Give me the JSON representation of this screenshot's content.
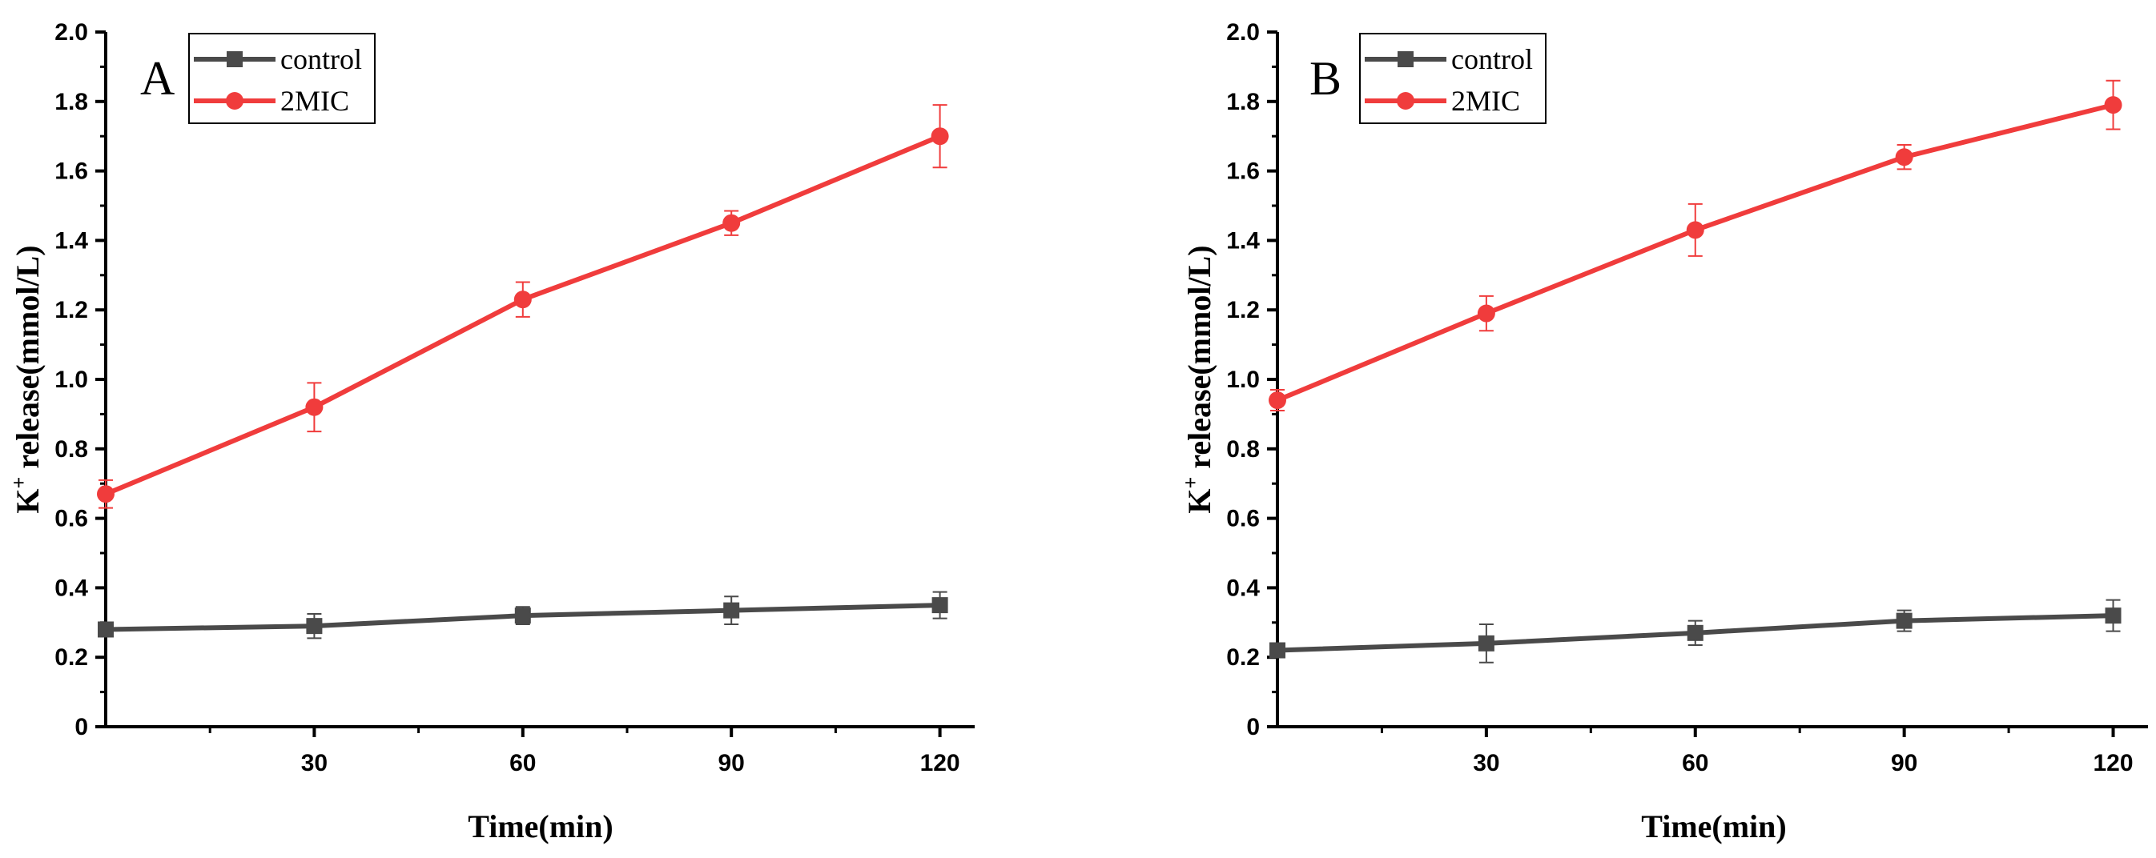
{
  "chart_data": [
    {
      "type": "line",
      "panel": "A",
      "xlabel": "Time(min)",
      "ylabel_main": "K",
      "ylabel_sup": "+",
      "ylabel_rest": " release(mmol/L)",
      "xlim": [
        0,
        125
      ],
      "ylim": [
        0,
        2.0
      ],
      "xticks": [
        30,
        60,
        90,
        120
      ],
      "xtick_labels": [
        "30",
        "60",
        "90",
        "120"
      ],
      "yticks": [
        0,
        0.2,
        0.4,
        0.6,
        0.8,
        1.0,
        1.2,
        1.4,
        1.6,
        1.8,
        2.0
      ],
      "ytick_labels": [
        "0",
        "0.2",
        "0.4",
        "0.6",
        "0.8",
        "1.0",
        "1.2",
        "1.4",
        "1.6",
        "1.8",
        "2.0"
      ],
      "legend_position": "top-left",
      "x": [
        0,
        30,
        60,
        90,
        120
      ],
      "series": [
        {
          "name": "control",
          "marker": "square",
          "color": "#4a4a4a",
          "values": [
            0.28,
            0.29,
            0.32,
            0.335,
            0.35
          ],
          "errors": [
            0.02,
            0.035,
            0.025,
            0.04,
            0.038
          ]
        },
        {
          "name": "2MIC",
          "marker": "circle",
          "color": "#f03c3c",
          "values": [
            0.67,
            0.92,
            1.23,
            1.45,
            1.7
          ],
          "errors": [
            0.04,
            0.07,
            0.05,
            0.035,
            0.09
          ]
        }
      ]
    },
    {
      "type": "line",
      "panel": "B",
      "xlabel": "Time(min)",
      "ylabel_main": "K",
      "ylabel_sup": "+",
      "ylabel_rest": " release(mmol/L)",
      "xlim": [
        0,
        125
      ],
      "ylim": [
        0,
        2.0
      ],
      "xticks": [
        30,
        60,
        90,
        120
      ],
      "xtick_labels": [
        "30",
        "60",
        "90",
        "120"
      ],
      "yticks": [
        0,
        0.2,
        0.4,
        0.6,
        0.8,
        1.0,
        1.2,
        1.4,
        1.6,
        1.8,
        2.0
      ],
      "ytick_labels": [
        "0",
        "0.2",
        "0.4",
        "0.6",
        "0.8",
        "1.0",
        "1.2",
        "1.4",
        "1.6",
        "1.8",
        "2.0"
      ],
      "legend_position": "top-left",
      "x": [
        0,
        30,
        60,
        90,
        120
      ],
      "series": [
        {
          "name": "control",
          "marker": "square",
          "color": "#4a4a4a",
          "values": [
            0.22,
            0.24,
            0.27,
            0.305,
            0.32
          ],
          "errors": [
            0.02,
            0.055,
            0.035,
            0.03,
            0.045
          ]
        },
        {
          "name": "2MIC",
          "marker": "circle",
          "color": "#f03c3c",
          "values": [
            0.94,
            1.19,
            1.43,
            1.64,
            1.79
          ],
          "errors": [
            0.03,
            0.05,
            0.075,
            0.035,
            0.07
          ]
        }
      ]
    }
  ]
}
